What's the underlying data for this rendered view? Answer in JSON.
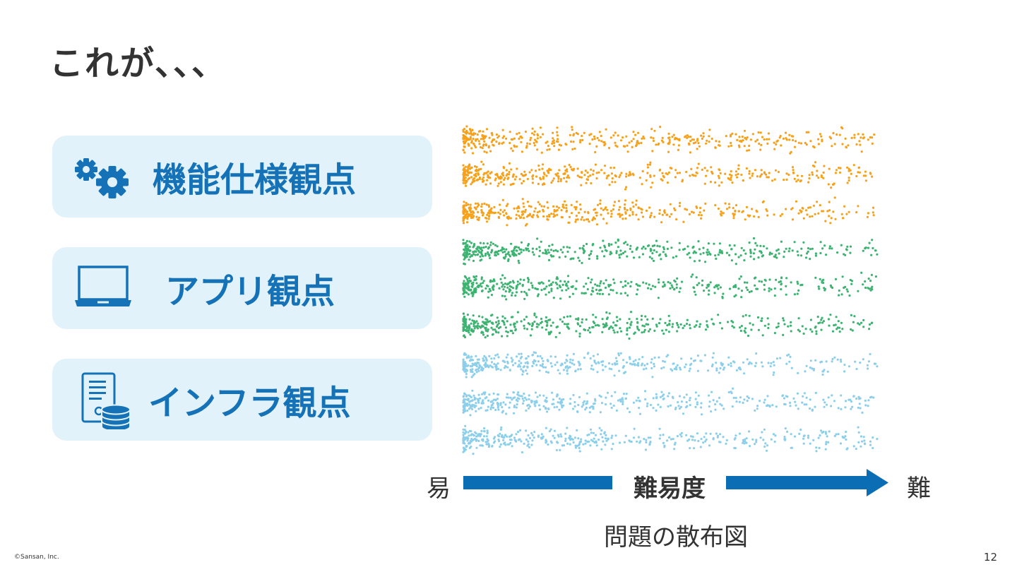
{
  "title": "これが、、、",
  "cards": [
    {
      "label": "機能仕様観点",
      "icon": "gears-icon"
    },
    {
      "label": "アプリ観点",
      "icon": "laptop-icon"
    },
    {
      "label": "インフラ観点",
      "icon": "server-database-icon"
    }
  ],
  "axis": {
    "easy": "易",
    "difficulty": "難易度",
    "hard": "難"
  },
  "caption": "問題の散布図",
  "footer": {
    "copyright": "©Sansan, Inc.",
    "page_number": "12"
  },
  "colors": {
    "accent": "#1572b6",
    "card_bg": "#e1f2fa",
    "arrow": "#0b6db4",
    "orange": "#f7a11a",
    "green": "#3cb371",
    "lightblue": "#8dcfea"
  }
}
